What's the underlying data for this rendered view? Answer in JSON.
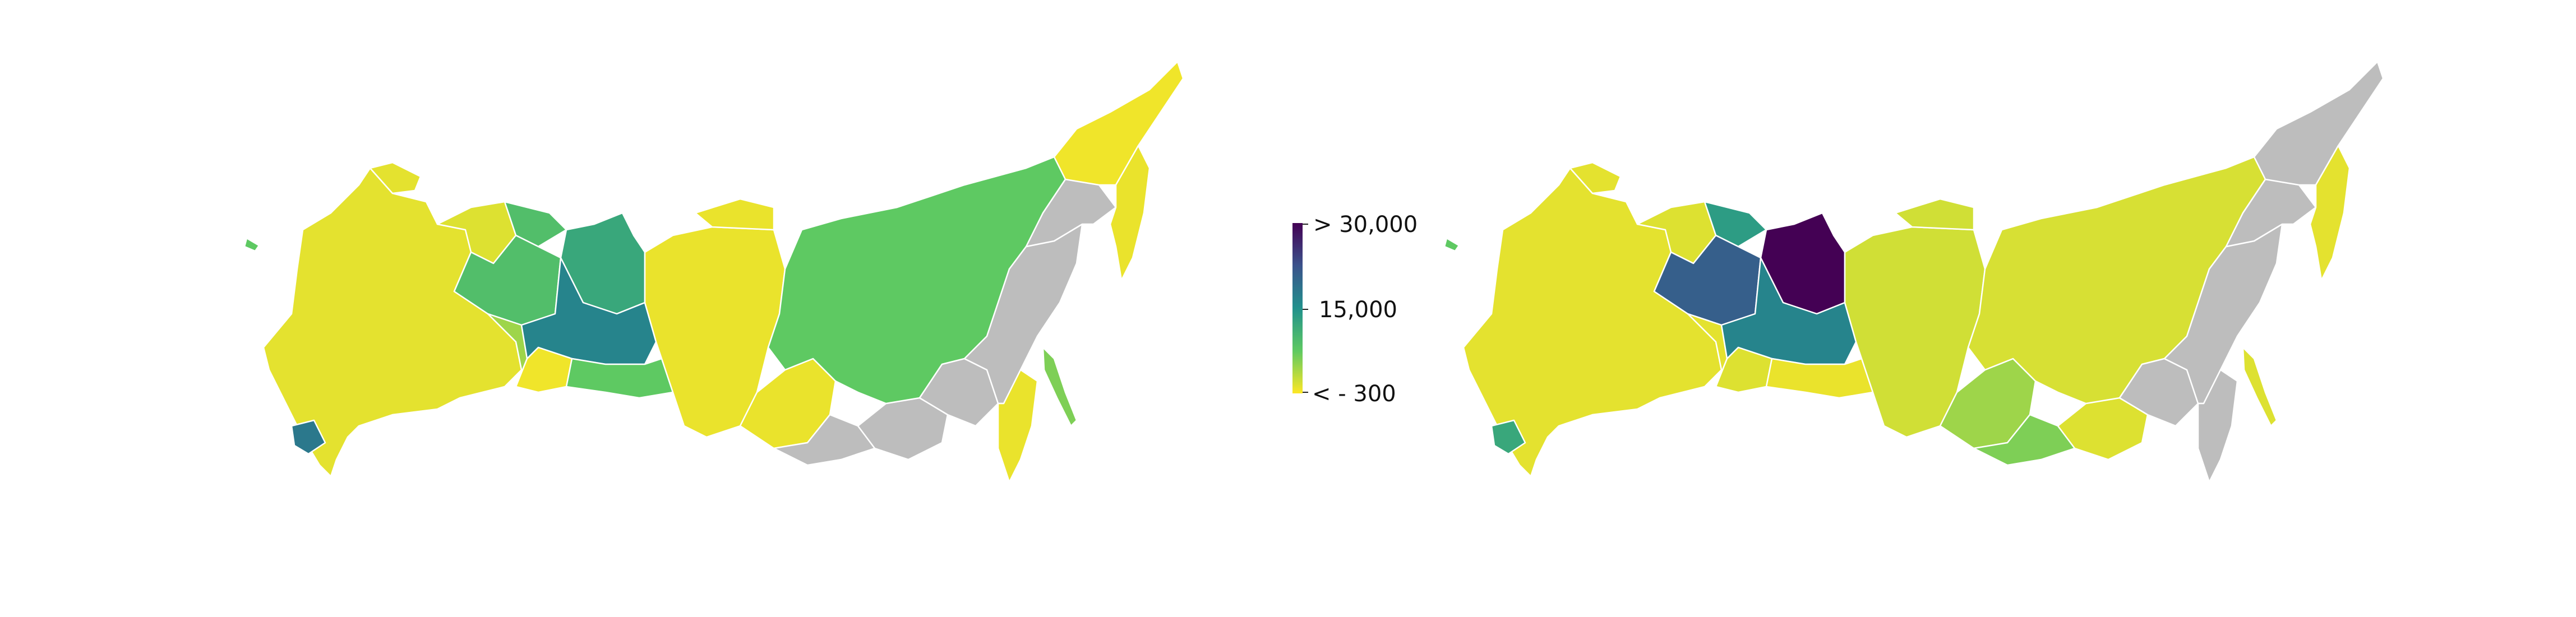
{
  "colors": {
    "no_data": "#bdbdbd",
    "scale_low": "#fde725",
    "scale_mid": "#21918c",
    "scale_high": "#440154",
    "background": "#ffffff"
  },
  "legend": {
    "max_label": "> 30,000",
    "mid_label": "15,000",
    "min_label": "< - 300",
    "min_value": -300,
    "mid_value": 15000,
    "max_value": 30000
  },
  "maps": [
    {
      "id": "map-left",
      "regions": [
        {
          "name": "chukotka",
          "level": 0.02
        },
        {
          "name": "kamchatka",
          "level": 0.03
        },
        {
          "name": "magadan",
          "level": null
        },
        {
          "name": "yakutia",
          "level": 0.25
        },
        {
          "name": "krasnoyarsk",
          "level": 0.03
        },
        {
          "name": "yamal",
          "level": 0.4
        },
        {
          "name": "khanty-mansi",
          "level": 0.55
        },
        {
          "name": "tyumen-south",
          "level": 0.02
        },
        {
          "name": "tomsk",
          "level": 0.25
        },
        {
          "name": "komi",
          "level": 0.3
        },
        {
          "name": "nenets",
          "level": 0.3
        },
        {
          "name": "arkhangelsk",
          "level": 0.05
        },
        {
          "name": "sverdlovsk",
          "level": 0.15
        },
        {
          "name": "irkutsk",
          "level": 0.03
        },
        {
          "name": "khabarovsk",
          "level": null
        },
        {
          "name": "amur",
          "level": null
        },
        {
          "name": "primorsky",
          "level": 0.03
        },
        {
          "name": "sakhalin",
          "level": 0.2
        },
        {
          "name": "zabaykalsky",
          "level": null
        },
        {
          "name": "buryatia",
          "level": null
        },
        {
          "name": "european-russia",
          "level": 0.04
        },
        {
          "name": "north-caucasus",
          "level": 0.6
        }
      ]
    },
    {
      "id": "map-right",
      "regions": [
        {
          "name": "chukotka",
          "level": null
        },
        {
          "name": "kamchatka",
          "level": 0.04
        },
        {
          "name": "magadan",
          "level": null
        },
        {
          "name": "yakutia",
          "level": 0.06
        },
        {
          "name": "krasnoyarsk",
          "level": 0.07
        },
        {
          "name": "yamal",
          "level": 1.0
        },
        {
          "name": "khanty-mansi",
          "level": 0.55
        },
        {
          "name": "tyumen-south",
          "level": 0.05
        },
        {
          "name": "tomsk",
          "level": 0.03
        },
        {
          "name": "komi",
          "level": 0.7
        },
        {
          "name": "nenets",
          "level": 0.45
        },
        {
          "name": "arkhangelsk",
          "level": 0.05
        },
        {
          "name": "sverdlovsk",
          "level": 0.04
        },
        {
          "name": "irkutsk",
          "level": 0.15
        },
        {
          "name": "khabarovsk",
          "level": null
        },
        {
          "name": "amur",
          "level": null
        },
        {
          "name": "primorsky",
          "level": null
        },
        {
          "name": "sakhalin",
          "level": 0.05
        },
        {
          "name": "zabaykalsky",
          "level": 0.05
        },
        {
          "name": "buryatia",
          "level": 0.2
        },
        {
          "name": "european-russia",
          "level": 0.04
        },
        {
          "name": "north-caucasus",
          "level": 0.4
        }
      ]
    }
  ]
}
